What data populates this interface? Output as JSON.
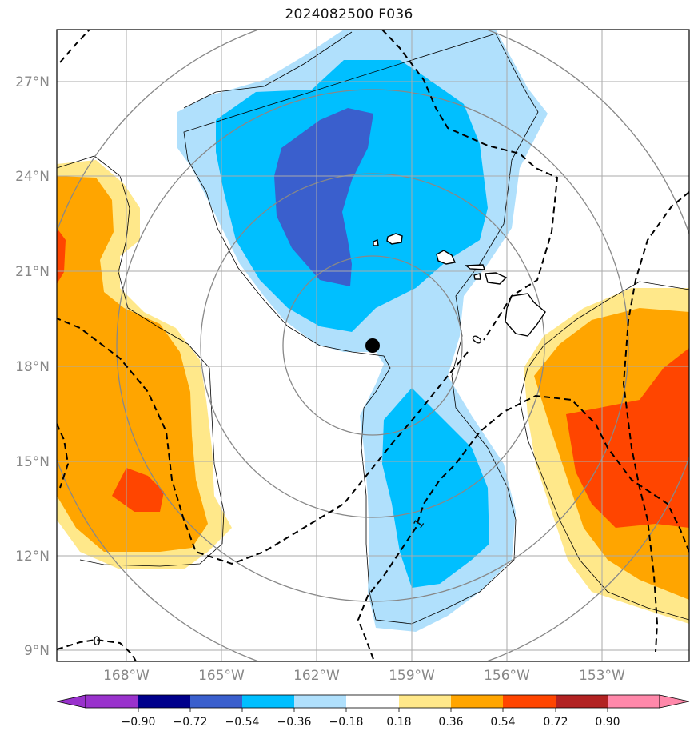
{
  "title": "2024082500 F036",
  "map": {
    "lat_labels": [
      "27°N",
      "24°N",
      "21°N",
      "18°N",
      "15°N",
      "12°N",
      "9°N"
    ],
    "lon_labels": [
      "168°W",
      "165°W",
      "162°W",
      "159°W",
      "156°W",
      "153°W"
    ],
    "contour_labels": [
      "0",
      "0",
      "1"
    ],
    "storm_marker": {
      "lat": 18.6,
      "lon": "160.2°W"
    }
  },
  "colorbar": {
    "labels": [
      "−0.90",
      "−0.72",
      "−0.54",
      "−0.36",
      "−0.18",
      "0.18",
      "0.36",
      "0.54",
      "0.72",
      "0.90"
    ],
    "colors": [
      "#9932cc",
      "#00008b",
      "#3a5fcd",
      "#00bfff",
      "#b0e0fc",
      "#ffffff",
      "#ffe88a",
      "#ffa500",
      "#ff4500",
      "#b22222",
      "#ff88aa",
      "#ff80b0"
    ]
  },
  "colors": {
    "grid": "#aaaaaa",
    "range_rings": "#888888",
    "coast": "#000000"
  }
}
